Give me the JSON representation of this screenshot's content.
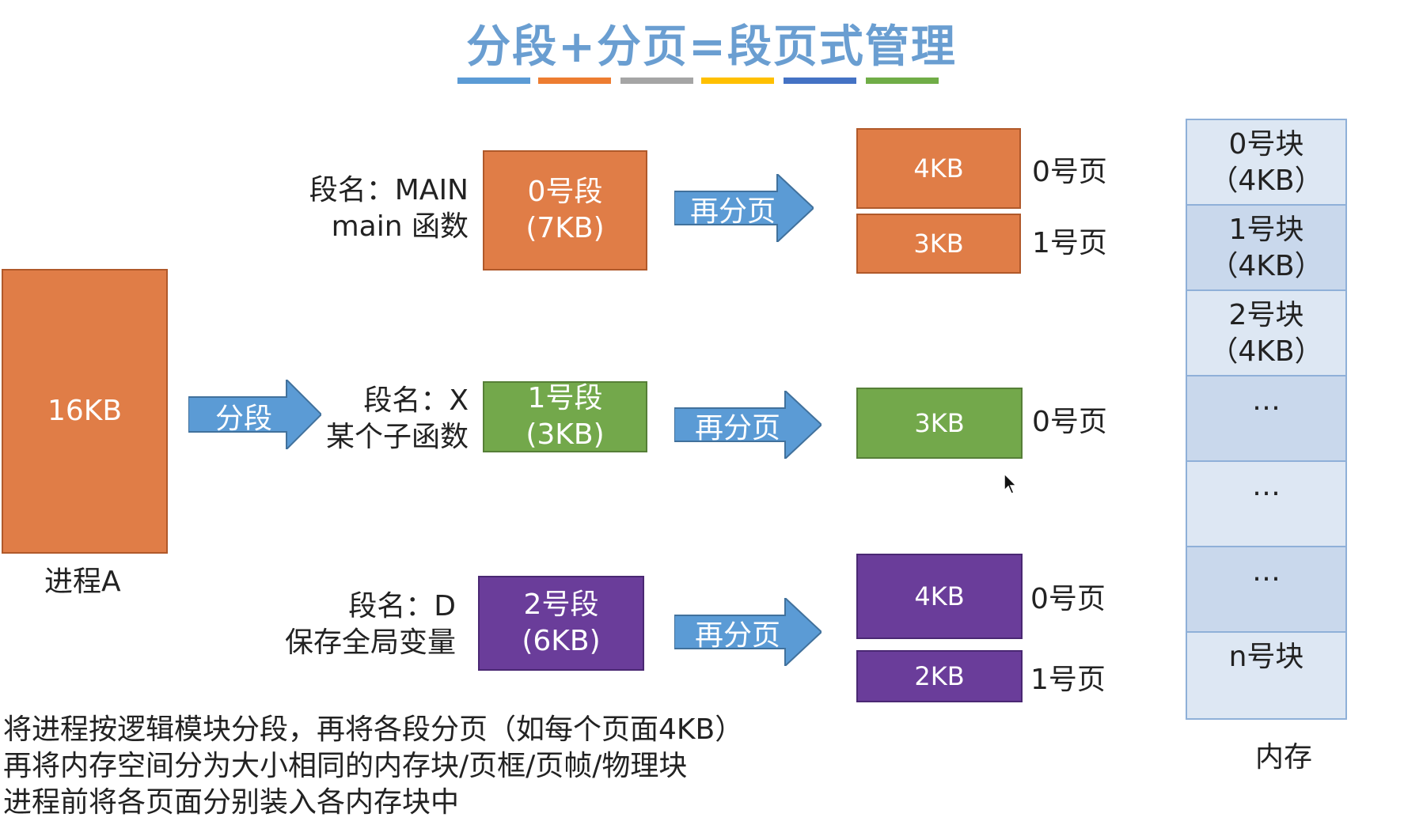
{
  "title": "分段+分页=段页式管理",
  "title_bar_colors": [
    "#5b9bd5",
    "#ed7d31",
    "#a5a5a5",
    "#ffc000",
    "#4472c4",
    "#70ad47"
  ],
  "process": {
    "size": "16KB",
    "name": "进程A"
  },
  "segment_arrow": "分段",
  "paging_arrow": "再分页",
  "segments": [
    {
      "name_line1": "段名：MAIN",
      "name_line2": "main 函数",
      "seg_line1": "0号段",
      "seg_line2": "(7KB)",
      "color": "#e07d47",
      "pages": [
        {
          "size": "4KB",
          "label": "0号页"
        },
        {
          "size": "3KB",
          "label": "1号页"
        }
      ]
    },
    {
      "name_line1": "段名：X",
      "name_line2": "某个子函数",
      "seg_line1": "1号段",
      "seg_line2": "(3KB)",
      "color": "#73a84b",
      "pages": [
        {
          "size": "3KB",
          "label": "0号页"
        }
      ]
    },
    {
      "name_line1": "段名：D",
      "name_line2": "保存全局变量",
      "seg_line1": "2号段",
      "seg_line2": "(6KB)",
      "color": "#6a3d9a",
      "pages": [
        {
          "size": "4KB",
          "label": "0号页"
        },
        {
          "size": "2KB",
          "label": "1号页"
        }
      ]
    }
  ],
  "memory": {
    "label": "内存",
    "blocks": [
      {
        "line1": "0号块",
        "line2": "（4KB）"
      },
      {
        "line1": "1号块",
        "line2": "（4KB）"
      },
      {
        "line1": "2号块",
        "line2": "（4KB）"
      },
      {
        "line1": "…",
        "line2": ""
      },
      {
        "line1": "…",
        "line2": ""
      },
      {
        "line1": "…",
        "line2": ""
      },
      {
        "line1": "n号块",
        "line2": ""
      }
    ]
  },
  "notes": [
    "将进程按逻辑模块分段，再将各段分页（如每个页面4KB）",
    "再将内存空间分为大小相同的内存块/页框/页帧/物理块",
    "进程前将各页面分别装入各内存块中"
  ]
}
